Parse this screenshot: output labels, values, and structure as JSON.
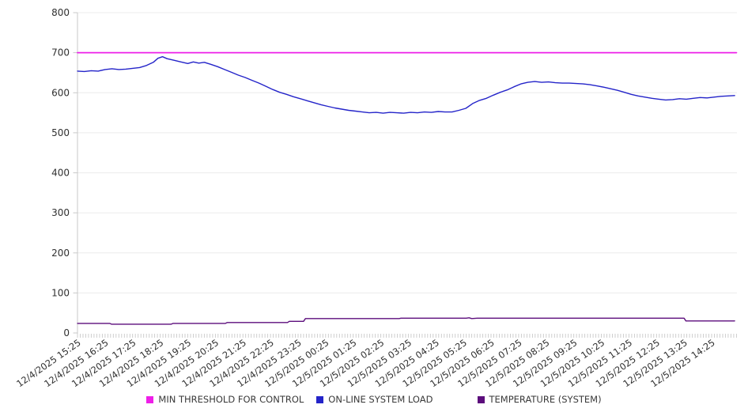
{
  "chart_data": {
    "type": "line",
    "title": "",
    "xlabel": "",
    "ylabel": "",
    "grid": "horizontal",
    "legend_position": "bottom",
    "x_axis": {
      "unit": "datetime",
      "tick_interval_minutes": 60,
      "minor_tick_minutes": 6,
      "range_minutes": [
        0,
        1434
      ],
      "label_rotation_deg": -35,
      "tick_labels": [
        "12/4/2025 15:25",
        "12/4/2025 16:25",
        "12/4/2025 17:25",
        "12/4/2025 18:25",
        "12/4/2025 19:25",
        "12/4/2025 20:25",
        "12/4/2025 21:25",
        "12/4/2025 22:25",
        "12/4/2025 23:25",
        "12/5/2025 00:25",
        "12/5/2025 01:25",
        "12/5/2025 02:25",
        "12/5/2025 03:25",
        "12/5/2025 04:25",
        "12/5/2025 05:25",
        "12/5/2025 06:25",
        "12/5/2025 07:25",
        "12/5/2025 08:25",
        "12/5/2025 09:25",
        "12/5/2025 10:25",
        "12/5/2025 11:25",
        "12/5/2025 12:25",
        "12/5/2025 13:25",
        "12/5/2025 14:25"
      ]
    },
    "y_axis": {
      "min": 0,
      "max": 800,
      "step": 100,
      "tick_labels": [
        "0",
        "100",
        "200",
        "300",
        "400",
        "500",
        "600",
        "700",
        "800"
      ]
    },
    "series": [
      {
        "name": "MIN THRESHOLD FOR CONTROL",
        "color": "#ee1fe8",
        "stroke_width": 1.8,
        "points": [
          [
            0,
            700
          ],
          [
            1434,
            700
          ]
        ]
      },
      {
        "name": "ON-LINE SYSTEM LOAD",
        "color": "#2424c9",
        "stroke_width": 1.4,
        "points": [
          [
            0,
            654
          ],
          [
            15,
            653
          ],
          [
            30,
            655
          ],
          [
            45,
            654
          ],
          [
            60,
            658
          ],
          [
            75,
            660
          ],
          [
            90,
            658
          ],
          [
            105,
            659
          ],
          [
            120,
            661
          ],
          [
            135,
            663
          ],
          [
            150,
            668
          ],
          [
            165,
            676
          ],
          [
            175,
            686
          ],
          [
            185,
            690
          ],
          [
            195,
            685
          ],
          [
            210,
            681
          ],
          [
            225,
            677
          ],
          [
            240,
            673
          ],
          [
            252,
            677
          ],
          [
            264,
            674
          ],
          [
            276,
            676
          ],
          [
            290,
            671
          ],
          [
            305,
            665
          ],
          [
            320,
            658
          ],
          [
            335,
            651
          ],
          [
            350,
            644
          ],
          [
            365,
            638
          ],
          [
            380,
            631
          ],
          [
            395,
            624
          ],
          [
            410,
            616
          ],
          [
            425,
            608
          ],
          [
            440,
            601
          ],
          [
            455,
            596
          ],
          [
            470,
            590
          ],
          [
            485,
            585
          ],
          [
            500,
            580
          ],
          [
            515,
            575
          ],
          [
            530,
            570
          ],
          [
            545,
            566
          ],
          [
            560,
            562
          ],
          [
            575,
            559
          ],
          [
            590,
            556
          ],
          [
            605,
            554
          ],
          [
            620,
            552
          ],
          [
            635,
            550
          ],
          [
            650,
            551
          ],
          [
            665,
            549
          ],
          [
            680,
            551
          ],
          [
            695,
            550
          ],
          [
            710,
            549
          ],
          [
            725,
            551
          ],
          [
            740,
            550
          ],
          [
            755,
            552
          ],
          [
            770,
            551
          ],
          [
            785,
            553
          ],
          [
            800,
            552
          ],
          [
            815,
            552
          ],
          [
            830,
            556
          ],
          [
            845,
            561
          ],
          [
            860,
            573
          ],
          [
            875,
            581
          ],
          [
            890,
            586
          ],
          [
            905,
            594
          ],
          [
            920,
            601
          ],
          [
            935,
            607
          ],
          [
            950,
            615
          ],
          [
            965,
            622
          ],
          [
            980,
            626
          ],
          [
            995,
            628
          ],
          [
            1010,
            626
          ],
          [
            1025,
            627
          ],
          [
            1040,
            625
          ],
          [
            1055,
            624
          ],
          [
            1070,
            624
          ],
          [
            1085,
            623
          ],
          [
            1100,
            622
          ],
          [
            1115,
            620
          ],
          [
            1130,
            617
          ],
          [
            1145,
            614
          ],
          [
            1160,
            610
          ],
          [
            1175,
            606
          ],
          [
            1190,
            601
          ],
          [
            1205,
            596
          ],
          [
            1220,
            592
          ],
          [
            1235,
            589
          ],
          [
            1250,
            586
          ],
          [
            1265,
            584
          ],
          [
            1280,
            582
          ],
          [
            1295,
            583
          ],
          [
            1310,
            585
          ],
          [
            1325,
            584
          ],
          [
            1340,
            586
          ],
          [
            1355,
            588
          ],
          [
            1370,
            587
          ],
          [
            1385,
            589
          ],
          [
            1400,
            591
          ],
          [
            1415,
            592
          ],
          [
            1430,
            593
          ]
        ]
      },
      {
        "name": "TEMPERATURE (SYSTEM)",
        "color": "#5c0d7c",
        "stroke_width": 1.4,
        "points": [
          [
            0,
            24
          ],
          [
            70,
            24
          ],
          [
            74,
            22
          ],
          [
            204,
            22
          ],
          [
            208,
            24
          ],
          [
            322,
            24
          ],
          [
            326,
            26
          ],
          [
            457,
            26
          ],
          [
            461,
            29
          ],
          [
            492,
            29
          ],
          [
            496,
            36
          ],
          [
            700,
            36
          ],
          [
            704,
            37
          ],
          [
            846,
            37
          ],
          [
            852,
            38
          ],
          [
            858,
            36
          ],
          [
            870,
            37
          ],
          [
            1320,
            37
          ],
          [
            1324,
            30
          ],
          [
            1430,
            30
          ]
        ]
      }
    ]
  },
  "colors": {
    "grid_line": "#ececec",
    "axis_spine": "#c9c9c9",
    "tick_mark": "#c9c9c9",
    "axis_text": "#303030",
    "legend_text": "#3a3a3a",
    "background": "#ffffff"
  }
}
